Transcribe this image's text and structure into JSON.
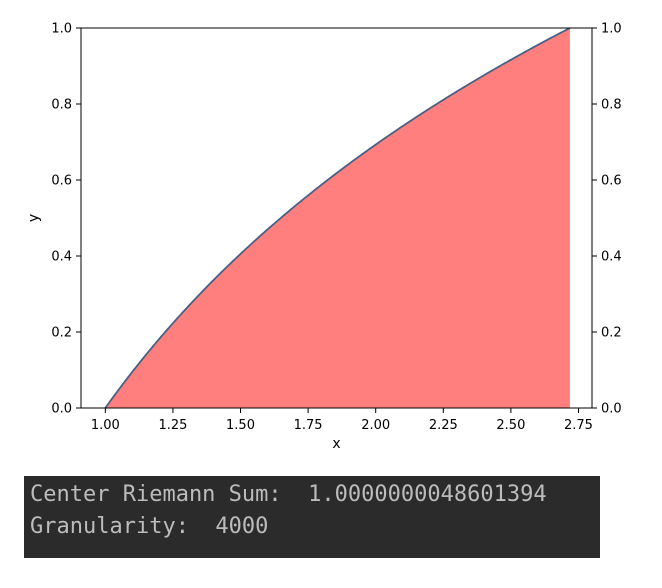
{
  "chart_data": {
    "type": "area",
    "function": "ln(x)",
    "x_range": [
      1.0,
      2.718281828
    ],
    "xlim": [
      0.91,
      2.8
    ],
    "ylim": [
      0.0,
      1.0
    ],
    "xlabel": "x",
    "ylabel": "y",
    "x_ticks": [
      "1.00",
      "1.25",
      "1.50",
      "1.75",
      "2.00",
      "2.25",
      "2.50",
      "2.75"
    ],
    "x_tick_values": [
      1.0,
      1.25,
      1.5,
      1.75,
      2.0,
      2.25,
      2.5,
      2.75
    ],
    "y_ticks": [
      "0.0",
      "0.2",
      "0.4",
      "0.6",
      "0.8",
      "1.0"
    ],
    "y_tick_values": [
      0.0,
      0.2,
      0.4,
      0.6,
      0.8,
      1.0
    ],
    "y_ticks_right": true,
    "points": [
      {
        "x": 1.0,
        "y": 0.0
      },
      {
        "x": 1.25,
        "y": 0.223
      },
      {
        "x": 1.5,
        "y": 0.405
      },
      {
        "x": 1.75,
        "y": 0.56
      },
      {
        "x": 2.0,
        "y": 0.693
      },
      {
        "x": 2.25,
        "y": 0.811
      },
      {
        "x": 2.5,
        "y": 0.916
      },
      {
        "x": 2.718,
        "y": 1.0
      }
    ],
    "fill_color": "#ff7f7f",
    "line_color": "#4c5f82",
    "grid": false,
    "legend": "none"
  },
  "console": {
    "line1": "Center Riemann Sum:  1.0000000048601394",
    "line2": "Granularity:  4000",
    "background": "#2b2b2b",
    "text_color": "#bcbcbc"
  }
}
